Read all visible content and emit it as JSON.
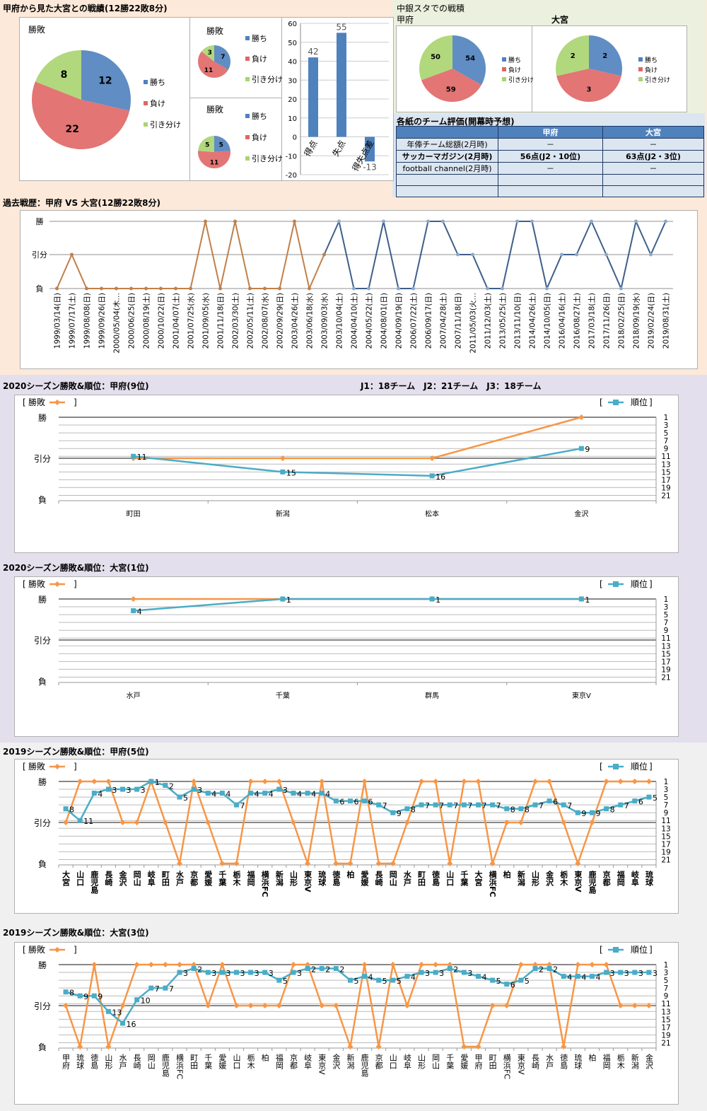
{
  "header": {
    "title": "甲府から見た大宮との戦績(12勝22敗8分)"
  },
  "stadium": {
    "title": "中銀スタでの戦積",
    "kofu_label": "甲府",
    "omiya_label": "大宮"
  },
  "ratings": {
    "title": "各紙のチーム評価(開幕時予想)",
    "columns": [
      "",
      "甲府",
      "大宮"
    ],
    "rows": [
      [
        "年俸チーム総額(2月時)",
        "－",
        "－"
      ],
      [
        "サッカーマガジン(2月時)",
        "56点(J2・10位)",
        "63点(J2・3位)"
      ],
      [
        "football channel(2月時)",
        "－",
        "－"
      ],
      [
        "",
        "",
        ""
      ],
      [
        "",
        "",
        ""
      ]
    ]
  },
  "history": {
    "title": "過去戦歴：甲府 VS 大宮(12勝22敗8分)"
  },
  "s2020_kofu": {
    "title": "2020シーズン勝敗&順位：甲府(9位)",
    "note": "J1：18チーム　J2：21チーム　J3：18チーム"
  },
  "s2020_omiya": {
    "title": "2020シーズン勝敗&順位：大宮(1位)"
  },
  "s2019_kofu": {
    "title": "2019シーズン勝敗&順位：甲府(5位)"
  },
  "s2019_omiya": {
    "title": "2019シーズン勝敗&順位：大宮(3位)"
  },
  "legend": {
    "result": "勝敗",
    "rank": "順位",
    "open": "[",
    "close": "]"
  },
  "axis": {
    "win": "勝",
    "draw": "引分",
    "loss": "負",
    "rank_ticks": [
      "1",
      "3",
      "5",
      "7",
      "9",
      "11",
      "13",
      "15",
      "17",
      "19",
      "21"
    ]
  },
  "colors": {
    "win": "#4f81bd",
    "loss": "#e06666",
    "draw": "#a9d46f",
    "result_line": "#f79646",
    "rank_line": "#4bacc6",
    "history_early": "#c0804a",
    "history_late": "#3e5f8a"
  },
  "chart_data": [
    {
      "type": "pie",
      "title": "勝敗",
      "labels": [
        "勝ち",
        "負け",
        "引き分け"
      ],
      "values": [
        12,
        22,
        8
      ]
    },
    {
      "type": "pie",
      "title": "勝敗",
      "labels": [
        "勝ち",
        "負け",
        "引き分け"
      ],
      "values": [
        7,
        11,
        3
      ]
    },
    {
      "type": "pie",
      "title": "勝敗",
      "labels": [
        "勝ち",
        "負け",
        "引き分け"
      ],
      "values": [
        5,
        11,
        5
      ]
    },
    {
      "type": "bar",
      "categories": [
        "得点",
        "失点",
        "得失点差"
      ],
      "values": [
        42,
        55,
        -13
      ],
      "ylim": [
        -20,
        60
      ],
      "yticks": [
        "60",
        "50",
        "40",
        "30",
        "20",
        "10",
        "0",
        "-10",
        "-20"
      ]
    },
    {
      "type": "pie",
      "title": "甲府",
      "labels": [
        "勝ち",
        "負け",
        "引き分け"
      ],
      "values": [
        54,
        59,
        50
      ]
    },
    {
      "type": "pie",
      "title": "大宮",
      "labels": [
        "勝ち",
        "負け",
        "引き分け"
      ],
      "values": [
        2,
        3,
        2
      ]
    },
    {
      "type": "line",
      "y_levels": [
        "勝",
        "引分",
        "負"
      ],
      "categories": [
        "1999/03/14(日)",
        "1999/07/17(土)",
        "1999/08/08(日)",
        "1999/09/26(日)",
        "2000/05/04(木…",
        "2000/06/25(日)",
        "2000/08/19(土)",
        "2000/10/22(日)",
        "2001/04/07(土)",
        "2001/07/25(水)",
        "2001/09/05(水)",
        "2001/11/18(日)",
        "2002/03/30(土)",
        "2002/05/11(土)",
        "2002/08/07(水)",
        "2002/09/29(日)",
        "2003/04/26(土)",
        "2003/06/18(水)",
        "2003/09/03(水)",
        "2003/10/04(土)",
        "2004/04/10(土)",
        "2004/05/22(土)",
        "2004/08/01(日)",
        "2004/09/19(日)",
        "2006/07/22(土)",
        "2006/09/17(日)",
        "2007/04/28(土)",
        "2007/11/18(日)",
        "2011/05/03(火…",
        "2011/12/03(土)",
        "2013/05/25(土)",
        "2013/11/10(日)",
        "2014/04/26(土)",
        "2014/10/05(日)",
        "2016/04/16(土)",
        "2016/08/27(土)",
        "2017/03/18(土)",
        "2017/11/26(日)",
        "2018/02/25(日)",
        "2018/09/19(水)",
        "2019/02/24(日)",
        "2019/08/31(土)"
      ],
      "results": [
        "負",
        "引分",
        "負",
        "負",
        "負",
        "負",
        "負",
        "負",
        "負",
        "負",
        "勝",
        "負",
        "勝",
        "負",
        "負",
        "負",
        "勝",
        "負",
        "引分",
        "勝",
        "負",
        "負",
        "勝",
        "負",
        "負",
        "勝",
        "勝",
        "引分",
        "引分",
        "負",
        "負",
        "勝",
        "勝",
        "負",
        "引分",
        "引分",
        "勝",
        "引分",
        "負",
        "勝",
        "引分",
        "勝"
      ]
    },
    {
      "type": "line",
      "y_levels": [
        "勝",
        "引分",
        "負"
      ],
      "categories": [
        "町田",
        "新潟",
        "松本",
        "金沢"
      ],
      "series": [
        {
          "name": "勝敗",
          "values": [
            "引分",
            "引分",
            "引分",
            "勝"
          ]
        },
        {
          "name": "順位",
          "values": [
            11,
            15,
            16,
            9
          ]
        }
      ],
      "rank_axis": [
        1,
        21
      ]
    },
    {
      "type": "line",
      "y_levels": [
        "勝",
        "引分",
        "負"
      ],
      "categories": [
        "水戸",
        "千葉",
        "群馬",
        "東京V"
      ],
      "series": [
        {
          "name": "勝敗",
          "values": [
            "勝",
            "勝",
            "勝",
            "勝"
          ]
        },
        {
          "name": "順位",
          "values": [
            4,
            1,
            1,
            1
          ]
        }
      ],
      "rank_axis": [
        1,
        21
      ]
    },
    {
      "type": "line",
      "y_levels": [
        "勝",
        "引分",
        "負"
      ],
      "categories": [
        "大宮",
        "山口",
        "鹿児島",
        "長崎",
        "金沢",
        "岡山",
        "岐阜",
        "町田",
        "水戸",
        "京都",
        "愛媛",
        "千葉",
        "栃木",
        "福岡",
        "横浜FC",
        "新潟",
        "山形",
        "東京V",
        "琉球",
        "徳島",
        "柏",
        "愛媛",
        "長崎",
        "岡山",
        "水戸",
        "町田",
        "徳島",
        "山口",
        "千葉",
        "大宮",
        "横浜FC",
        "柏",
        "新潟",
        "山形",
        "金沢",
        "栃木",
        "東京V",
        "鹿児島",
        "京都",
        "福岡",
        "岐阜",
        "琉球"
      ],
      "series": [
        {
          "name": "勝敗",
          "values": [
            "引分",
            "勝",
            "勝",
            "勝",
            "引分",
            "引分",
            "勝",
            "引分",
            "負",
            "勝",
            "引分",
            "負",
            "負",
            "勝",
            "勝",
            "勝",
            "引分",
            "負",
            "勝",
            "負",
            "負",
            "勝",
            "負",
            "負",
            "引分",
            "勝",
            "勝",
            "負",
            "勝",
            "勝",
            "負",
            "引分",
            "引分",
            "勝",
            "勝",
            "引分",
            "負",
            "引分",
            "勝",
            "勝",
            "勝",
            "勝"
          ]
        },
        {
          "name": "順位",
          "values": [
            8,
            11,
            4,
            3,
            3,
            3,
            1,
            2,
            5,
            3,
            4,
            4,
            7,
            4,
            4,
            3,
            4,
            4,
            4,
            6,
            6,
            6,
            7,
            9,
            8,
            7,
            7,
            7,
            7,
            7,
            7,
            8,
            8,
            7,
            6,
            7,
            9,
            9,
            8,
            7,
            6,
            5
          ]
        }
      ],
      "rank_axis": [
        1,
        21
      ]
    },
    {
      "type": "line",
      "y_levels": [
        "勝",
        "引分",
        "負"
      ],
      "categories": [
        "甲府",
        "琉球",
        "徳島",
        "山形",
        "水戸",
        "長崎",
        "岡山",
        "鹿児島",
        "横浜FC",
        "町田",
        "千葉",
        "愛媛",
        "山口",
        "栃木",
        "柏",
        "福岡",
        "京都",
        "岐阜",
        "東京V",
        "金沢",
        "新潟",
        "鹿児島",
        "京都",
        "山口",
        "岐阜",
        "山形",
        "岡山",
        "千葉",
        "愛媛",
        "甲府",
        "町田",
        "横浜FC",
        "東京V",
        "長崎",
        "水戸",
        "徳島",
        "琉球",
        "柏",
        "福岡",
        "栃木",
        "新潟",
        "金沢"
      ],
      "series": [
        {
          "name": "勝敗",
          "values": [
            "引分",
            "負",
            "勝",
            "負",
            "引分",
            "勝",
            "勝",
            "勝",
            "勝",
            "勝",
            "引分",
            "勝",
            "引分",
            "引分",
            "引分",
            "引分",
            "勝",
            "勝",
            "引分",
            "引分",
            "負",
            "勝",
            "負",
            "勝",
            "引分",
            "勝",
            "勝",
            "勝",
            "負",
            "負",
            "引分",
            "引分",
            "勝",
            "勝",
            "勝",
            "負",
            "勝",
            "勝",
            "勝",
            "引分",
            "引分",
            "引分"
          ]
        },
        {
          "name": "順位",
          "values": [
            8,
            9,
            9,
            13,
            16,
            10,
            7,
            7,
            3,
            2,
            3,
            3,
            3,
            3,
            3,
            5,
            3,
            2,
            2,
            2,
            5,
            4,
            5,
            5,
            4,
            3,
            3,
            2,
            3,
            4,
            5,
            6,
            5,
            2,
            2,
            4,
            4,
            4,
            3,
            3,
            3,
            3
          ]
        }
      ],
      "rank_axis": [
        1,
        21
      ]
    }
  ]
}
